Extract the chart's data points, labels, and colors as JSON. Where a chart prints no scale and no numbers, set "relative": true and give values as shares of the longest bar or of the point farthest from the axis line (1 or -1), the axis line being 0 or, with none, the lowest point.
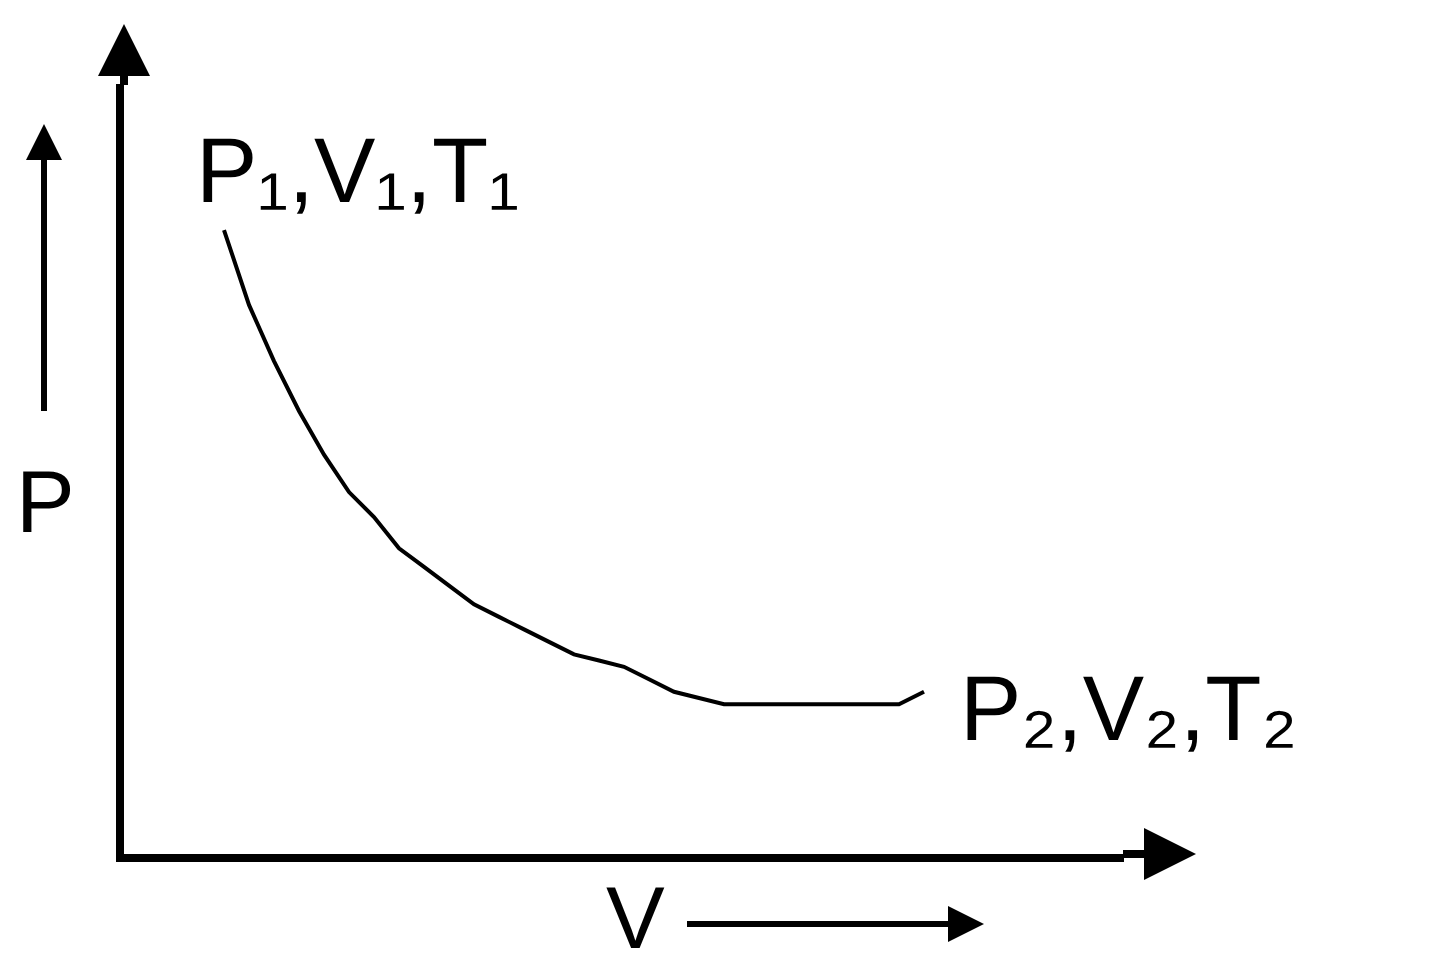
{
  "chart_data": {
    "type": "line",
    "relative": true,
    "categories": [
      null,
      null,
      null,
      null,
      null,
      null,
      null,
      null,
      null,
      null,
      null,
      null,
      null,
      null,
      null,
      null,
      null,
      null,
      null,
      null,
      null,
      null,
      null,
      null,
      null,
      null,
      null,
      null,
      null,
      null,
      null,
      null,
      null,
      null,
      null,
      null,
      null,
      null,
      null,
      null,
      null
    ],
    "series": [
      {
        "color": "#000000",
        "values": [
          null,
          null,
          null,
          null,
          1,
          0.88,
          0.79,
          0.71,
          0.64,
          0.58,
          0.54,
          0.49,
          0.46,
          0.43,
          0.4,
          0.38,
          0.36,
          0.34,
          0.32,
          0.31,
          0.3,
          0.28,
          0.26,
          0.25,
          0.24,
          0.24,
          0.24,
          0.24,
          0.24,
          0.24,
          0.24,
          0.24,
          0.26,
          null,
          null,
          null,
          null,
          null,
          null,
          null,
          null
        ]
      }
    ],
    "xlabel": "V",
    "ylabel": "P",
    "annotations": [
      "P₁,V₁,T₁",
      "P₂,V₂,T₂"
    ],
    "marker": "none",
    "line_style": "solid"
  }
}
